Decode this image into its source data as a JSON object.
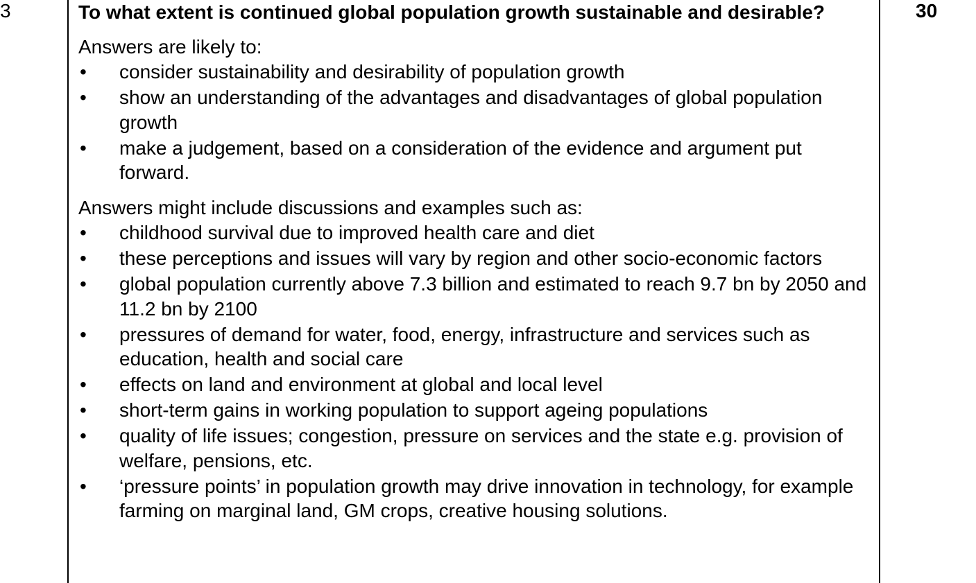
{
  "row": {
    "question_number": "3",
    "marks": "30",
    "question_text": "To what extent is continued global population growth sustainable and desirable?",
    "likely_intro": "Answers are likely to:",
    "likely_points": [
      "consider sustainability and desirability of population growth",
      "show an understanding of the advantages and disadvantages of global population growth",
      "make a judgement, based on a consideration of the evidence and argument put forward."
    ],
    "include_intro": "Answers might include discussions and examples such as:",
    "include_points": [
      "childhood survival due to improved health care and diet",
      "these perceptions and issues will vary by region and other socio-economic factors",
      "global population currently above 7.3 billion and estimated to reach 9.7 bn by 2050 and 11.2 bn by 2100",
      "pressures of demand for water, food, energy, infrastructure and services such as education, health and social care",
      "effects on land and environment at global and local level",
      "short-term gains in working population to support ageing populations",
      "quality of life issues; congestion, pressure on services and the state e.g. provision of welfare, pensions, etc.",
      "‘pressure points’ in population growth may drive innovation in technology, for example farming on marginal land, GM crops, creative housing solutions."
    ],
    "bullet_symbol": "•"
  }
}
